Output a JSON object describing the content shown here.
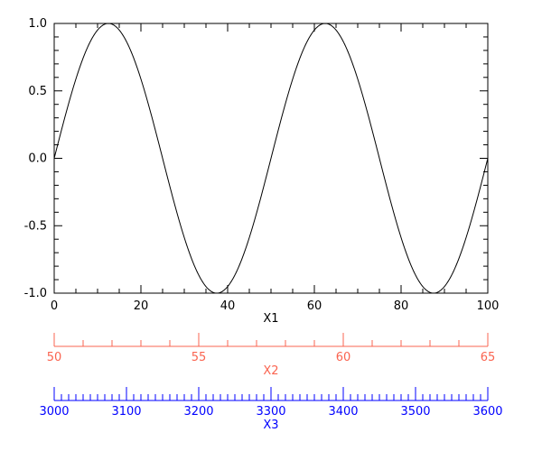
{
  "chart_data": {
    "type": "line",
    "x": [
      0,
      2.5,
      5,
      7.5,
      10,
      12.5,
      15,
      17.5,
      20,
      22.5,
      25,
      27.5,
      30,
      32.5,
      35,
      37.5,
      40,
      42.5,
      45,
      47.5,
      50,
      52.5,
      55,
      57.5,
      60,
      62.5,
      65,
      67.5,
      70,
      72.5,
      75,
      77.5,
      80,
      82.5,
      85,
      87.5,
      90,
      92.5,
      95,
      97.5,
      100
    ],
    "series": [
      {
        "values": [
          0,
          0.309,
          0.588,
          0.809,
          0.951,
          1,
          0.951,
          0.809,
          0.588,
          0.309,
          0,
          -0.309,
          -0.588,
          -0.809,
          -0.951,
          -1,
          -0.951,
          -0.809,
          -0.588,
          -0.309,
          0,
          0.309,
          0.588,
          0.809,
          0.951,
          1,
          0.951,
          0.809,
          0.588,
          0.309,
          0,
          -0.309,
          -0.588,
          -0.809,
          -0.951,
          -1,
          -0.951,
          -0.809,
          -0.588,
          -0.309,
          0
        ],
        "color": "#000000"
      }
    ],
    "xlim": [
      0,
      100
    ],
    "ylim": [
      -1.0,
      1.0
    ],
    "xlabel": "X1",
    "ylabel": "",
    "x_ticks": [
      "0",
      "20",
      "40",
      "60",
      "80",
      "100"
    ],
    "x_tick_values": [
      0,
      20,
      40,
      60,
      80,
      100
    ],
    "y_ticks": [
      "-1.0",
      "-0.5",
      "0.0",
      "0.5",
      "1.0"
    ],
    "y_tick_values": [
      -1.0,
      -0.5,
      0.0,
      0.5,
      1.0
    ],
    "grid": false,
    "extra_axes": [
      {
        "label": "X2",
        "color": "#fa6450",
        "range": [
          50,
          65
        ],
        "ticks": [
          "50",
          "55",
          "60",
          "65"
        ],
        "tick_values": [
          50,
          55,
          60,
          65
        ],
        "minor_step": 1
      },
      {
        "label": "X3",
        "color": "#0000ff",
        "range": [
          3000,
          3600
        ],
        "ticks": [
          "3000",
          "3100",
          "3200",
          "3300",
          "3400",
          "3500",
          "3600"
        ],
        "tick_values": [
          3000,
          3100,
          3200,
          3300,
          3400,
          3500,
          3600
        ],
        "minor_step": 10
      }
    ]
  }
}
